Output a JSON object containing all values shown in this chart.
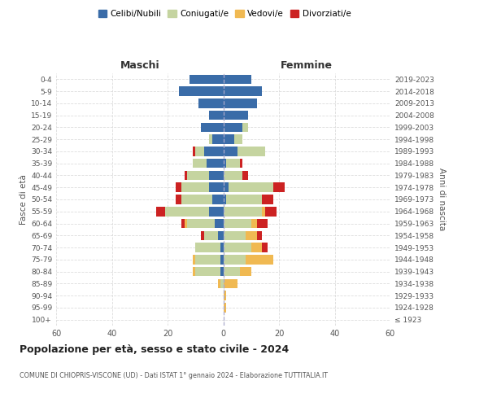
{
  "age_groups": [
    "100+",
    "95-99",
    "90-94",
    "85-89",
    "80-84",
    "75-79",
    "70-74",
    "65-69",
    "60-64",
    "55-59",
    "50-54",
    "45-49",
    "40-44",
    "35-39",
    "30-34",
    "25-29",
    "20-24",
    "15-19",
    "10-14",
    "5-9",
    "0-4"
  ],
  "birth_years": [
    "≤ 1923",
    "1924-1928",
    "1929-1933",
    "1934-1938",
    "1939-1943",
    "1944-1948",
    "1949-1953",
    "1954-1958",
    "1959-1963",
    "1964-1968",
    "1969-1973",
    "1974-1978",
    "1979-1983",
    "1984-1988",
    "1989-1993",
    "1994-1998",
    "1999-2003",
    "2004-2008",
    "2009-2013",
    "2014-2018",
    "2019-2023"
  ],
  "colors": {
    "celibe": "#3a6ca8",
    "coniugato": "#c5d4a0",
    "vedovo": "#f0b952",
    "divorziato": "#cc2222"
  },
  "maschi": {
    "celibe": [
      0,
      0,
      0,
      0,
      1,
      1,
      1,
      2,
      3,
      5,
      4,
      5,
      5,
      6,
      7,
      4,
      8,
      5,
      9,
      16,
      12
    ],
    "coniugato": [
      0,
      0,
      0,
      1,
      9,
      9,
      9,
      5,
      10,
      16,
      11,
      10,
      8,
      5,
      3,
      1,
      0,
      0,
      0,
      0,
      0
    ],
    "vedovo": [
      0,
      0,
      0,
      1,
      1,
      1,
      0,
      0,
      1,
      0,
      0,
      0,
      0,
      0,
      0,
      0,
      0,
      0,
      0,
      0,
      0
    ],
    "divorziato": [
      0,
      0,
      0,
      0,
      0,
      0,
      0,
      1,
      1,
      3,
      2,
      2,
      1,
      0,
      1,
      0,
      0,
      0,
      0,
      0,
      0
    ]
  },
  "femmine": {
    "nubile": [
      0,
      0,
      0,
      0,
      0,
      0,
      0,
      0,
      0,
      0,
      1,
      2,
      0,
      1,
      5,
      4,
      7,
      9,
      12,
      14,
      10
    ],
    "coniugata": [
      0,
      0,
      0,
      0,
      6,
      8,
      10,
      8,
      10,
      14,
      13,
      16,
      7,
      5,
      10,
      3,
      2,
      0,
      0,
      0,
      0
    ],
    "vedova": [
      0,
      1,
      1,
      5,
      4,
      10,
      4,
      4,
      2,
      1,
      0,
      0,
      0,
      0,
      0,
      0,
      0,
      0,
      0,
      0,
      0
    ],
    "divorziata": [
      0,
      0,
      0,
      0,
      0,
      0,
      2,
      2,
      4,
      4,
      4,
      4,
      2,
      1,
      0,
      0,
      0,
      0,
      0,
      0,
      0
    ]
  },
  "xlim": 60,
  "title": "Popolazione per età, sesso e stato civile - 2024",
  "subtitle": "COMUNE DI CHIOPRIS-VISCONE (UD) - Dati ISTAT 1° gennaio 2024 - Elaborazione TUTTITALIA.IT",
  "xlabel_left": "Maschi",
  "xlabel_right": "Femmine",
  "ylabel_left": "Fasce di età",
  "ylabel_right": "Anni di nascita",
  "legend_labels": [
    "Celibi/Nubili",
    "Coniugati/e",
    "Vedovi/e",
    "Divorziati/e"
  ],
  "bg_color": "#ffffff",
  "grid_color": "#dddddd"
}
